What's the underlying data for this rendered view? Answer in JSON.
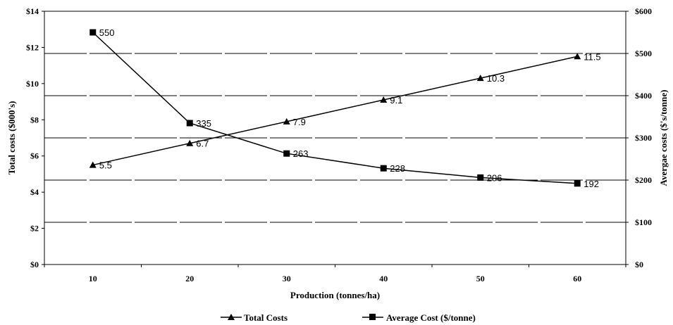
{
  "chart_data": {
    "type": "line",
    "x": [
      10,
      20,
      30,
      40,
      50,
      60
    ],
    "xlabel": "Production (tonnes/ha)",
    "ylabel_left": "Total costs ($000's)",
    "ylabel_right": "Avergae costs ($'s/tonne)",
    "ylim_left": [
      0,
      14
    ],
    "ylim_right": [
      0,
      600
    ],
    "yticks_left": [
      "$0",
      "$2",
      "$4",
      "$6",
      "$8",
      "$10",
      "$12",
      "$14"
    ],
    "yticks_right": [
      "$0",
      "$100",
      "$200",
      "$300",
      "$400",
      "$500",
      "$600"
    ],
    "xticks": [
      "10",
      "20",
      "30",
      "40",
      "50",
      "60"
    ],
    "grid": true,
    "legend_position": "bottom",
    "series": [
      {
        "name": "Total Costs",
        "axis": "left",
        "marker": "triangle",
        "values": [
          5.5,
          6.7,
          7.9,
          9.1,
          10.3,
          11.5
        ],
        "labels": [
          "5.5",
          "6.7",
          "7.9",
          "9.1",
          "10.3",
          "11.5"
        ]
      },
      {
        "name": "Average Cost ($/tonne)",
        "axis": "right",
        "marker": "square",
        "values": [
          550,
          335,
          263,
          228,
          206,
          192
        ],
        "labels": [
          "550",
          "335",
          "263",
          "228",
          "206",
          "192"
        ]
      }
    ]
  }
}
